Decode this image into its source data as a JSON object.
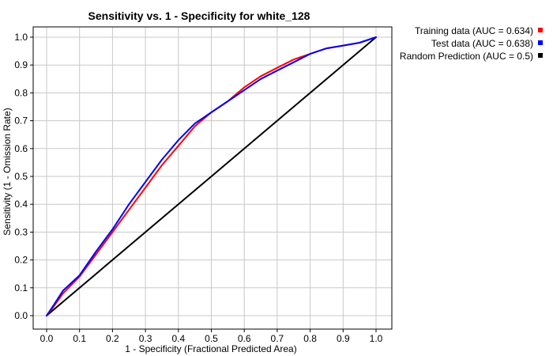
{
  "chart_data": {
    "type": "line",
    "title": "Sensitivity vs. 1 - Specificity for white_128",
    "xlabel": "1 - Specificity  (Fractional Predicted Area)",
    "ylabel": "Sensitivity  (1 - Omission Rate)",
    "xlim": [
      0,
      1
    ],
    "ylim": [
      0,
      1
    ],
    "xticks": [
      "0.0",
      "0.1",
      "0.2",
      "0.3",
      "0.4",
      "0.5",
      "0.6",
      "0.7",
      "0.8",
      "0.9",
      "1.0"
    ],
    "yticks": [
      "0.0",
      "0.1",
      "0.2",
      "0.3",
      "0.4",
      "0.5",
      "0.6",
      "0.7",
      "0.8",
      "0.9",
      "1.0"
    ],
    "grid": true,
    "legend_position": "outside-top-right",
    "series": [
      {
        "name": "Training data (AUC = 0.634)",
        "color": "#ff0000",
        "x": [
          0.0,
          0.02,
          0.05,
          0.1,
          0.15,
          0.2,
          0.25,
          0.3,
          0.35,
          0.4,
          0.45,
          0.5,
          0.55,
          0.6,
          0.65,
          0.7,
          0.75,
          0.8,
          0.85,
          0.9,
          0.95,
          1.0
        ],
        "y": [
          0.0,
          0.03,
          0.08,
          0.14,
          0.22,
          0.3,
          0.38,
          0.46,
          0.54,
          0.61,
          0.68,
          0.73,
          0.77,
          0.82,
          0.86,
          0.89,
          0.92,
          0.94,
          0.96,
          0.97,
          0.98,
          1.0
        ]
      },
      {
        "name": "Test data (AUC = 0.638)",
        "color": "#0000ff",
        "x": [
          0.0,
          0.02,
          0.05,
          0.1,
          0.15,
          0.2,
          0.25,
          0.3,
          0.35,
          0.4,
          0.45,
          0.5,
          0.55,
          0.6,
          0.65,
          0.7,
          0.75,
          0.8,
          0.85,
          0.9,
          0.95,
          1.0
        ],
        "y": [
          0.0,
          0.035,
          0.09,
          0.145,
          0.23,
          0.31,
          0.4,
          0.48,
          0.56,
          0.63,
          0.69,
          0.73,
          0.77,
          0.81,
          0.85,
          0.88,
          0.91,
          0.94,
          0.96,
          0.97,
          0.98,
          1.0
        ]
      },
      {
        "name": "Random Prediction (AUC = 0.5)",
        "color": "#000000",
        "x": [
          0.0,
          1.0
        ],
        "y": [
          0.0,
          1.0
        ]
      }
    ]
  }
}
